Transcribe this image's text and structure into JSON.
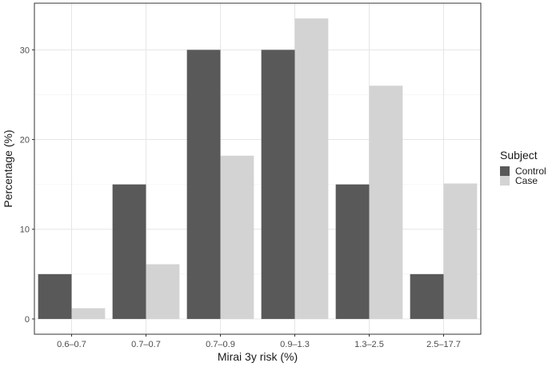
{
  "chart_data": {
    "type": "bar",
    "title": "",
    "xlabel": "Mirai 3y risk (%)",
    "ylabel": "Percentage (%)",
    "categories": [
      "0.6–0.7",
      "0.7–0.7",
      "0.7–0.9",
      "0.9–1.3",
      "1.3–2.5",
      "2.5–17.7"
    ],
    "series": [
      {
        "name": "Control",
        "color": "#595959",
        "values": [
          5,
          15,
          30,
          30,
          15,
          5
        ]
      },
      {
        "name": "Case",
        "color": "#d3d3d4",
        "values": [
          1.2,
          6.1,
          18.2,
          33.5,
          26.0,
          15.1
        ]
      }
    ],
    "yticks": [
      0,
      10,
      20,
      30
    ],
    "ylim": [
      -1.7,
      35.2
    ],
    "grid": true,
    "legend": {
      "title": "Subject",
      "position": "right"
    }
  }
}
